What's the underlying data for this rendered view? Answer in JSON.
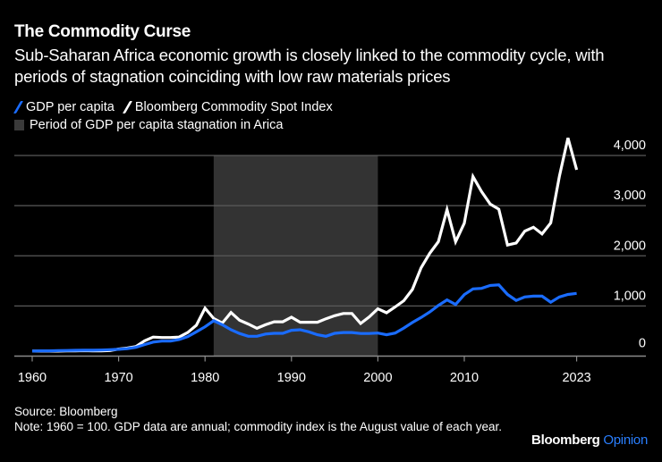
{
  "header": {
    "title": "The Commodity Curse",
    "subtitle": "Sub-Saharan Africa economic growth is closely linked to the commodity cycle, with periods of stagnation coinciding with low raw materials prices"
  },
  "legend": {
    "items": [
      {
        "label": "GDP per capita",
        "icon": "blue-slash-icon",
        "color": "#1a6cff"
      },
      {
        "label": "Bloomberg Commodity Spot Index",
        "icon": "white-slash-icon",
        "color": "#ffffff"
      },
      {
        "label": "Period of GDP per capita stagnation in Arica",
        "icon": "gray-square-icon",
        "color": "#333333"
      }
    ]
  },
  "footer": {
    "source": "Source: Bloomberg",
    "note": "Note: 1960 = 100. GDP data are annual; commodity index is the August value of each year."
  },
  "brand": {
    "name": "Bloomberg",
    "accent": "Opinion",
    "accent_color": "#2a7fff"
  },
  "chart_data": {
    "type": "line",
    "title": "The Commodity Curse",
    "xlabel": "",
    "ylabel": "",
    "xlim": [
      1959,
      2031
    ],
    "ylim": [
      0,
      4000
    ],
    "x_ticks": [
      1960,
      1970,
      1980,
      1990,
      2000,
      2010,
      2023
    ],
    "y_ticks": [
      0,
      1000,
      2000,
      3000,
      4000
    ],
    "y_tick_labels": [
      "0",
      "1,000",
      "2,000",
      "3,000",
      "4,000"
    ],
    "y_axis_position": "right",
    "grid": true,
    "legend_position": "top-left",
    "shaded_period": {
      "label": "Period of GDP per capita stagnation in Arica",
      "start": 1981,
      "end": 2000,
      "color": "#333333"
    },
    "x": [
      1960,
      1961,
      1962,
      1963,
      1964,
      1965,
      1966,
      1967,
      1968,
      1969,
      1970,
      1971,
      1972,
      1973,
      1974,
      1975,
      1976,
      1977,
      1978,
      1979,
      1980,
      1981,
      1982,
      1983,
      1984,
      1985,
      1986,
      1987,
      1988,
      1989,
      1990,
      1991,
      1992,
      1993,
      1994,
      1995,
      1996,
      1997,
      1998,
      1999,
      2000,
      2001,
      2002,
      2003,
      2004,
      2005,
      2006,
      2007,
      2008,
      2009,
      2010,
      2011,
      2012,
      2013,
      2014,
      2015,
      2016,
      2017,
      2018,
      2019,
      2020,
      2021,
      2022,
      2023
    ],
    "series": [
      {
        "name": "GDP per capita",
        "color": "#1a6cff",
        "values": [
          100,
          105,
          105,
          110,
          112,
          115,
          118,
          118,
          122,
          128,
          135,
          150,
          175,
          230,
          280,
          300,
          300,
          330,
          390,
          485,
          585,
          705,
          625,
          525,
          450,
          395,
          395,
          440,
          455,
          455,
          515,
          525,
          485,
          425,
          395,
          455,
          470,
          470,
          450,
          450,
          460,
          425,
          460,
          560,
          670,
          770,
          880,
          1010,
          1120,
          1030,
          1225,
          1340,
          1350,
          1410,
          1420,
          1230,
          1110,
          1180,
          1195,
          1195,
          1075,
          1180,
          1230,
          1250
        ]
      },
      {
        "name": "Bloomberg Commodity Spot Index",
        "color": "#ffffff",
        "values": [
          100,
          100,
          100,
          100,
          105,
          105,
          108,
          105,
          105,
          110,
          140,
          160,
          190,
          305,
          380,
          370,
          370,
          380,
          470,
          615,
          955,
          750,
          660,
          870,
          715,
          640,
          555,
          625,
          685,
          685,
          775,
          675,
          675,
          675,
          745,
          805,
          850,
          850,
          650,
          780,
          945,
          865,
          980,
          1105,
          1330,
          1760,
          2050,
          2280,
          2920,
          2280,
          2650,
          3580,
          3280,
          3030,
          2930,
          2215,
          2255,
          2490,
          2570,
          2435,
          2655,
          3585,
          4350,
          3715
        ]
      }
    ]
  }
}
